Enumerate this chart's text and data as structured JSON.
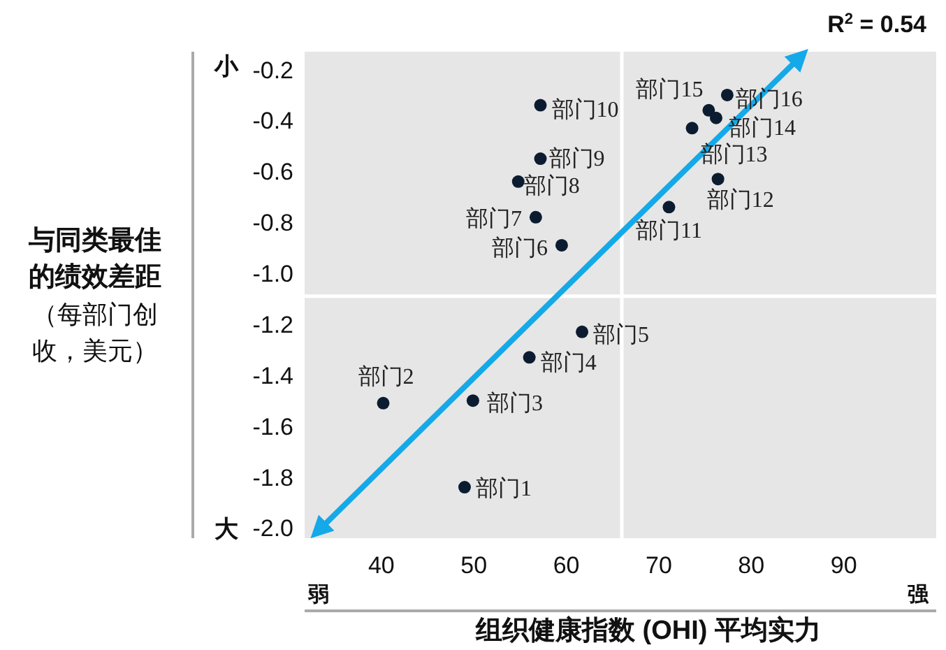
{
  "chart_data": {
    "type": "scatter",
    "xlabel": "组织健康指数 (OHI) 平均实力",
    "ylabel": "与同类最佳的绩效差距",
    "xlim": [
      31.7,
      100
    ],
    "ylim": [
      -2.04,
      -0.13
    ],
    "xticks": [
      40,
      50,
      60,
      70,
      80,
      90
    ],
    "yticks": [
      -0.2,
      -0.4,
      -0.6,
      -0.8,
      {
        "value": -1,
        "label": "-1.0"
      },
      -1.2,
      -1.4,
      -1.6,
      -1.8,
      {
        "value": -2,
        "label": "-2.0"
      }
    ],
    "ref_lines": [
      {
        "axis": "x",
        "value": 66,
        "color": "#ffffff"
      },
      {
        "axis": "y",
        "value": -1.09,
        "color": "#ffffff"
      }
    ],
    "series": [
      {
        "type": "line",
        "x": [
          33.2,
          85.3
        ],
        "values": [
          -2.01,
          -0.15
        ],
        "color": "#14a9e8",
        "marker": "none"
      },
      {
        "marker": "circle",
        "x": [
          49.0,
          40.2,
          49.9,
          56.0,
          61.7,
          59.5,
          56.7,
          54.8,
          57.2,
          57.2,
          71.1,
          76.4,
          73.6,
          76.2,
          75.4,
          77.4
        ],
        "values": [
          -1.84,
          -1.51,
          -1.5,
          -1.33,
          -1.23,
          -0.89,
          -0.78,
          -0.64,
          -0.55,
          -0.34,
          -0.74,
          -0.63,
          -0.43,
          -0.39,
          -0.36,
          -0.3
        ],
        "color": "#0c1c30"
      }
    ],
    "annotations": [
      {
        "text": "部门1",
        "x": 49.0,
        "y": -1.84
      },
      {
        "text": "部门2",
        "x": 40.2,
        "y": -1.51
      },
      {
        "text": "部门3",
        "x": 49.9,
        "y": -1.5
      },
      {
        "text": "部门4",
        "x": 56.0,
        "y": -1.33
      },
      {
        "text": "部门5",
        "x": 61.7,
        "y": -1.23
      },
      {
        "text": "部门6",
        "x": 59.5,
        "y": -0.89
      },
      {
        "text": "部门7",
        "x": 56.7,
        "y": -0.78
      },
      {
        "text": "部门8",
        "x": 54.8,
        "y": -0.64
      },
      {
        "text": "部门9",
        "x": 57.2,
        "y": -0.55
      },
      {
        "text": "部门10",
        "x": 57.2,
        "y": -0.34
      },
      {
        "text": "部门11",
        "x": 71.1,
        "y": -0.74
      },
      {
        "text": "部门12",
        "x": 76.4,
        "y": -0.63
      },
      {
        "text": "部门13",
        "x": 73.6,
        "y": -0.43
      },
      {
        "text": "部门14",
        "x": 76.2,
        "y": -0.39
      },
      {
        "text": "部门15",
        "x": 75.4,
        "y": -0.36
      },
      {
        "text": "部门16",
        "x": 77.4,
        "y": -0.3
      },
      "R$^{2}$ = 0.54",
      "小",
      "大",
      "弱",
      "强",
      "（每部门创收，美元）"
    ]
  }
}
